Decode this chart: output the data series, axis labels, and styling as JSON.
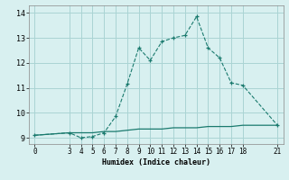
{
  "xlabel": "Humidex (Indice chaleur)",
  "bg_color": "#d8f0f0",
  "line_color": "#1a7a6e",
  "grid_color": "#aad4d4",
  "series1_x": [
    0,
    3,
    4,
    5,
    6,
    7,
    8,
    9,
    10,
    11,
    12,
    13,
    14,
    15,
    16,
    17,
    18,
    21
  ],
  "series1_y": [
    9.1,
    9.2,
    9.0,
    9.05,
    9.2,
    9.85,
    11.15,
    12.6,
    12.1,
    12.85,
    13.0,
    13.1,
    13.85,
    12.6,
    12.2,
    11.2,
    11.1,
    9.5
  ],
  "series2_x": [
    0,
    3,
    4,
    5,
    6,
    7,
    8,
    9,
    10,
    11,
    12,
    13,
    14,
    15,
    16,
    17,
    18,
    21
  ],
  "series2_y": [
    9.1,
    9.2,
    9.2,
    9.2,
    9.25,
    9.25,
    9.3,
    9.35,
    9.35,
    9.35,
    9.4,
    9.4,
    9.4,
    9.45,
    9.45,
    9.45,
    9.5,
    9.5
  ],
  "xlim": [
    -0.5,
    21.5
  ],
  "ylim": [
    8.75,
    14.3
  ],
  "xticks": [
    0,
    3,
    4,
    5,
    6,
    7,
    8,
    9,
    10,
    11,
    12,
    13,
    14,
    15,
    16,
    17,
    18,
    21
  ],
  "yticks": [
    9,
    10,
    11,
    12,
    13,
    14
  ],
  "tick_fontsize": 5.5,
  "xlabel_fontsize": 6.0
}
